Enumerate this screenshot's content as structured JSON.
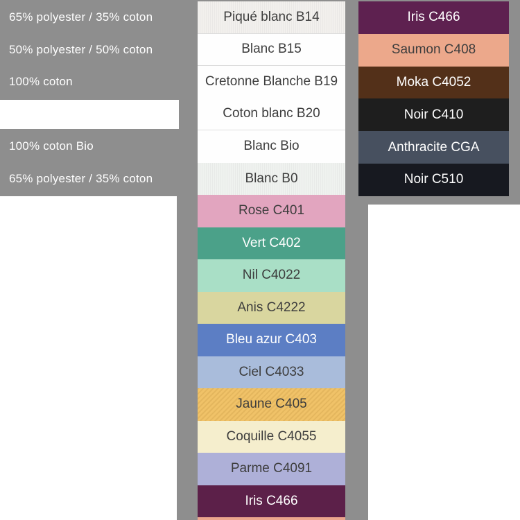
{
  "chart_data": {
    "type": "table",
    "composition_labels": [
      "65% polyester / 35% coton",
      "50% polyester / 50% coton",
      "100% coton",
      "",
      "100% coton Bio",
      "65% polyester / 35% coton"
    ],
    "white_fabrics": [
      {
        "label": "Piqué blanc B14",
        "hex": "#f2f0ed",
        "text": "#3d3d3d"
      },
      {
        "label": "Blanc B15",
        "hex": "#fefefe",
        "text": "#3d3d3d"
      },
      {
        "label": "Cretonne Blanche B19",
        "hex": "#fefefe",
        "text": "#3d3d3d"
      },
      {
        "label": "Coton blanc B20",
        "hex": "#fefefe",
        "text": "#3d3d3d"
      },
      {
        "label": "Blanc Bio",
        "hex": "#fefefe",
        "text": "#3d3d3d"
      },
      {
        "label": "Blanc B0",
        "hex": "#eff2ef",
        "text": "#3d3d3d"
      },
      {
        "label": "Rose C401",
        "hex": "#e2a5bf",
        "text": "#3d3d3d"
      },
      {
        "label": "Vert C402",
        "hex": "#4ba189",
        "text": "#ffffff"
      },
      {
        "label": "Nil C4022",
        "hex": "#a9dfc6",
        "text": "#3d3d3d"
      },
      {
        "label": "Anis C4222",
        "hex": "#d9d69f",
        "text": "#3d3d3d"
      },
      {
        "label": "Bleu azur C403",
        "hex": "#5c7ec4",
        "text": "#ffffff"
      },
      {
        "label": "Ciel C4033",
        "hex": "#a9bcdb",
        "text": "#3d3d3d"
      },
      {
        "label": "Jaune C405",
        "hex": "#f0c268",
        "text": "#3d3d3d"
      },
      {
        "label": "Coquille C4055",
        "hex": "#f5eecd",
        "text": "#3d3d3d"
      },
      {
        "label": "Parme C4091",
        "hex": "#aeb0d8",
        "text": "#3d3d3d"
      },
      {
        "label": "Iris C466",
        "hex": "#5c2049",
        "text": "#ffffff"
      }
    ],
    "color_swatches": [
      {
        "label": "Iris C466",
        "hex": "#5e2150",
        "text": "#ffffff"
      },
      {
        "label": "Saumon C408",
        "hex": "#eca88b",
        "text": "#3d3d3d"
      },
      {
        "label": "Moka C4052",
        "hex": "#533019",
        "text": "#ffffff"
      },
      {
        "label": "Noir C410",
        "hex": "#1e1e1e",
        "text": "#ffffff"
      },
      {
        "label": "Anthracite CGA",
        "hex": "#47505f",
        "text": "#ffffff"
      },
      {
        "label": "Noir C510",
        "hex": "#171920",
        "text": "#ffffff"
      }
    ]
  },
  "colors": {
    "background_gray": "#8e8e8e",
    "divider": "#dcdcdc",
    "label_text_light": "#ffffff",
    "swatch_text_dark": "#3d3d3d",
    "bottom_sliver": "#eba58d"
  }
}
